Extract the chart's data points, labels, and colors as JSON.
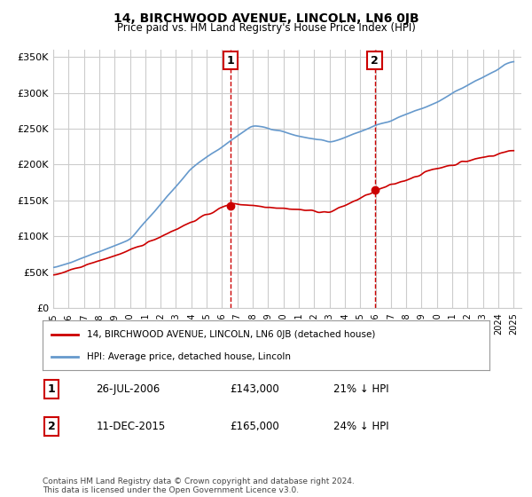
{
  "title": "14, BIRCHWOOD AVENUE, LINCOLN, LN6 0JB",
  "subtitle": "Price paid vs. HM Land Registry's House Price Index (HPI)",
  "sale1_date": "26-JUL-2006",
  "sale1_price": 143000,
  "sale1_hpi_diff": "21% ↓ HPI",
  "sale2_date": "11-DEC-2015",
  "sale2_price": 165000,
  "sale2_hpi_diff": "24% ↓ HPI",
  "legend1": "14, BIRCHWOOD AVENUE, LINCOLN, LN6 0JB (detached house)",
  "legend2": "HPI: Average price, detached house, Lincoln",
  "footer": "Contains HM Land Registry data © Crown copyright and database right 2024.\nThis data is licensed under the Open Government Licence v3.0.",
  "sale1_color": "#cc0000",
  "sale2_color": "#cc0000",
  "hpi_color": "#6699cc",
  "marker_color": "#cc0000",
  "vline_color": "#cc0000",
  "box_color": "#cc0000",
  "ylim": [
    0,
    360000
  ],
  "yticks": [
    0,
    50000,
    100000,
    150000,
    200000,
    250000,
    300000,
    350000
  ],
  "ytick_labels": [
    "£0",
    "£50K",
    "£100K",
    "£150K",
    "£200K",
    "£250K",
    "£300K",
    "£350K"
  ],
  "background_color": "#ffffff",
  "grid_color": "#cccccc"
}
